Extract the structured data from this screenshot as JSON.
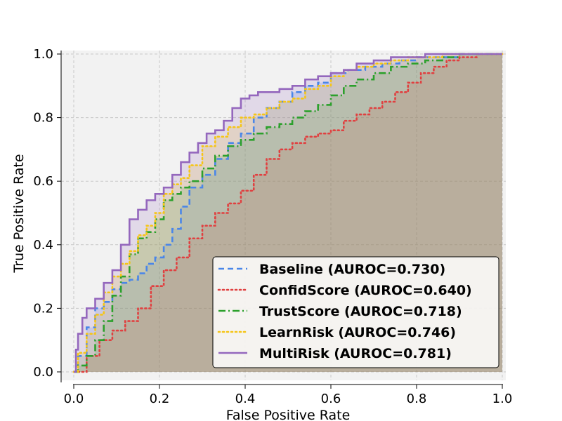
{
  "chart_data": {
    "type": "line",
    "title": "",
    "xlabel": "False Positive Rate",
    "ylabel": "True Positive Rate",
    "xlim": [
      0.0,
      1.0
    ],
    "ylim": [
      0.0,
      1.0
    ],
    "xticks": [
      "0.0",
      "0.2",
      "0.4",
      "0.6",
      "0.8",
      "1.0"
    ],
    "yticks": [
      "0.0",
      "0.2",
      "0.4",
      "0.6",
      "0.8",
      "1.0"
    ],
    "grid": true,
    "legend_position": "lower-right",
    "series": [
      {
        "name": "Baseline (AUROC=0.730)",
        "color": "#4a86e8",
        "style": "dashed",
        "x": [
          0.0,
          0.01,
          0.03,
          0.05,
          0.07,
          0.09,
          0.11,
          0.13,
          0.15,
          0.17,
          0.19,
          0.21,
          0.23,
          0.25,
          0.27,
          0.3,
          0.33,
          0.36,
          0.39,
          0.42,
          0.45,
          0.48,
          0.51,
          0.54,
          0.57,
          0.6,
          0.64,
          0.68,
          0.72,
          0.76,
          0.8,
          0.85,
          0.9,
          0.95,
          1.0
        ],
        "y": [
          0.0,
          0.05,
          0.14,
          0.2,
          0.22,
          0.26,
          0.28,
          0.29,
          0.31,
          0.34,
          0.36,
          0.4,
          0.45,
          0.52,
          0.58,
          0.62,
          0.67,
          0.72,
          0.75,
          0.8,
          0.83,
          0.85,
          0.88,
          0.9,
          0.91,
          0.94,
          0.95,
          0.96,
          0.97,
          0.98,
          0.99,
          0.99,
          1.0,
          1.0,
          1.0
        ]
      },
      {
        "name": "ConfidScore (AUROC=0.640)",
        "color": "#e04040",
        "style": "dotted",
        "x": [
          0.0,
          0.03,
          0.06,
          0.09,
          0.12,
          0.15,
          0.18,
          0.21,
          0.24,
          0.27,
          0.3,
          0.33,
          0.36,
          0.39,
          0.42,
          0.45,
          0.48,
          0.51,
          0.54,
          0.57,
          0.6,
          0.63,
          0.66,
          0.69,
          0.72,
          0.75,
          0.78,
          0.81,
          0.84,
          0.87,
          0.9,
          0.94,
          1.0
        ],
        "y": [
          0.0,
          0.05,
          0.1,
          0.13,
          0.16,
          0.2,
          0.27,
          0.32,
          0.36,
          0.42,
          0.46,
          0.5,
          0.53,
          0.57,
          0.62,
          0.67,
          0.7,
          0.72,
          0.74,
          0.75,
          0.76,
          0.79,
          0.81,
          0.83,
          0.85,
          0.88,
          0.91,
          0.94,
          0.96,
          0.98,
          0.99,
          1.0,
          1.0
        ]
      },
      {
        "name": "TrustScore (AUROC=0.718)",
        "color": "#2ca02c",
        "style": "dashdot",
        "x": [
          0.0,
          0.01,
          0.03,
          0.05,
          0.07,
          0.09,
          0.11,
          0.13,
          0.15,
          0.17,
          0.19,
          0.21,
          0.23,
          0.25,
          0.27,
          0.3,
          0.33,
          0.36,
          0.39,
          0.42,
          0.45,
          0.48,
          0.51,
          0.54,
          0.57,
          0.6,
          0.63,
          0.66,
          0.7,
          0.74,
          0.78,
          0.82,
          0.86,
          0.9,
          0.95,
          1.0
        ],
        "y": [
          0.0,
          0.02,
          0.05,
          0.1,
          0.16,
          0.24,
          0.3,
          0.37,
          0.42,
          0.44,
          0.48,
          0.54,
          0.56,
          0.58,
          0.6,
          0.64,
          0.68,
          0.71,
          0.73,
          0.75,
          0.77,
          0.78,
          0.8,
          0.82,
          0.84,
          0.87,
          0.9,
          0.92,
          0.94,
          0.96,
          0.97,
          0.98,
          0.99,
          1.0,
          1.0,
          1.0
        ]
      },
      {
        "name": "LearnRisk (AUROC=0.746)",
        "color": "#f5c518",
        "style": "dotted",
        "x": [
          0.0,
          0.01,
          0.03,
          0.05,
          0.07,
          0.09,
          0.11,
          0.13,
          0.15,
          0.17,
          0.19,
          0.21,
          0.23,
          0.25,
          0.27,
          0.3,
          0.33,
          0.36,
          0.39,
          0.42,
          0.45,
          0.48,
          0.51,
          0.54,
          0.57,
          0.6,
          0.63,
          0.66,
          0.7,
          0.74,
          0.78,
          0.82,
          0.86,
          0.9,
          0.95,
          1.0
        ],
        "y": [
          0.0,
          0.06,
          0.12,
          0.18,
          0.25,
          0.3,
          0.34,
          0.38,
          0.43,
          0.46,
          0.5,
          0.56,
          0.59,
          0.61,
          0.65,
          0.71,
          0.74,
          0.77,
          0.8,
          0.81,
          0.83,
          0.85,
          0.86,
          0.89,
          0.9,
          0.93,
          0.95,
          0.96,
          0.97,
          0.98,
          0.99,
          0.99,
          1.0,
          1.0,
          1.0,
          1.0
        ]
      },
      {
        "name": "MultiRisk (AUROC=0.781)",
        "color": "#9467bd",
        "style": "solid",
        "x": [
          0.0,
          0.005,
          0.01,
          0.02,
          0.03,
          0.05,
          0.07,
          0.09,
          0.11,
          0.13,
          0.15,
          0.17,
          0.19,
          0.21,
          0.23,
          0.25,
          0.27,
          0.29,
          0.31,
          0.33,
          0.35,
          0.37,
          0.39,
          0.41,
          0.43,
          0.45,
          0.48,
          0.51,
          0.54,
          0.57,
          0.6,
          0.63,
          0.66,
          0.7,
          0.74,
          0.78,
          0.82,
          0.86,
          0.9,
          0.95,
          1.0
        ],
        "y": [
          0.0,
          0.07,
          0.12,
          0.17,
          0.2,
          0.23,
          0.28,
          0.32,
          0.4,
          0.48,
          0.51,
          0.54,
          0.56,
          0.58,
          0.62,
          0.66,
          0.69,
          0.72,
          0.75,
          0.76,
          0.79,
          0.83,
          0.86,
          0.87,
          0.88,
          0.88,
          0.89,
          0.9,
          0.92,
          0.93,
          0.94,
          0.95,
          0.97,
          0.98,
          0.99,
          0.99,
          1.0,
          1.0,
          1.0,
          1.0,
          1.0
        ]
      }
    ]
  }
}
